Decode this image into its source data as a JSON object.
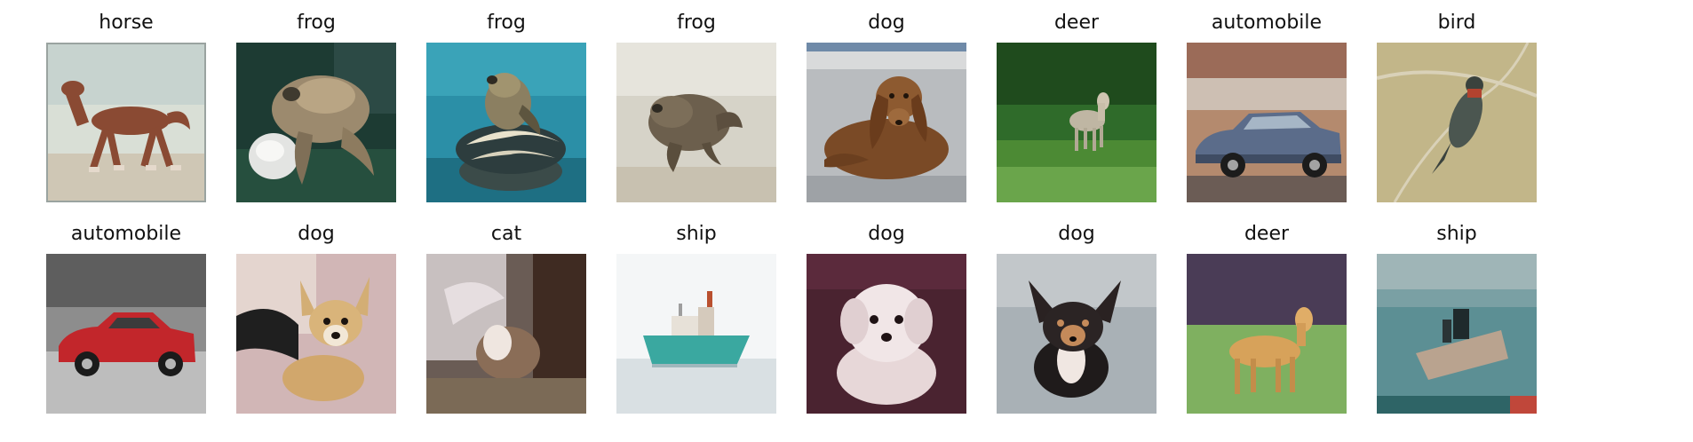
{
  "images": [
    {
      "label": "horse",
      "icon": "horse-photo"
    },
    {
      "label": "frog",
      "icon": "frog-photo"
    },
    {
      "label": "frog",
      "icon": "frog-photo"
    },
    {
      "label": "frog",
      "icon": "frog-photo"
    },
    {
      "label": "dog",
      "icon": "dog-photo"
    },
    {
      "label": "deer",
      "icon": "deer-photo"
    },
    {
      "label": "automobile",
      "icon": "automobile-photo"
    },
    {
      "label": "bird",
      "icon": "bird-photo"
    },
    {
      "label": "automobile",
      "icon": "automobile-photo"
    },
    {
      "label": "dog",
      "icon": "dog-photo"
    },
    {
      "label": "cat",
      "icon": "cat-photo"
    },
    {
      "label": "ship",
      "icon": "ship-photo"
    },
    {
      "label": "dog",
      "icon": "dog-photo"
    },
    {
      "label": "dog",
      "icon": "dog-photo"
    },
    {
      "label": "deer",
      "icon": "deer-photo"
    },
    {
      "label": "ship",
      "icon": "ship-photo"
    }
  ]
}
